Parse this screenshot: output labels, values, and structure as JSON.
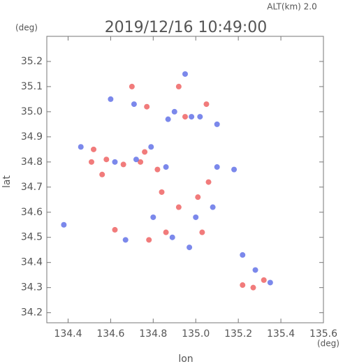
{
  "chart_data": {
    "type": "scatter",
    "title": "2019/12/16 10:49:00",
    "annotation": "ALT(km) 2.0",
    "y_unit": "(deg)",
    "x_unit": "(deg)",
    "xlabel": "lon",
    "ylabel": "lat",
    "xlim": [
      134.3,
      135.6
    ],
    "ylim": [
      34.16,
      35.3
    ],
    "xticks": [
      134.4,
      134.6,
      134.8,
      {
        "value": 135,
        "label": "135.0"
      },
      135.2,
      135.4,
      135.6
    ],
    "yticks": [
      34.2,
      34.3,
      34.4,
      34.5,
      34.6,
      34.7,
      34.8,
      34.9,
      {
        "value": 35,
        "label": "35.0"
      },
      35.1,
      35.2
    ],
    "series": [
      {
        "color": "#ee5a5a",
        "x": [
          134.52,
          134.51,
          134.58,
          134.66,
          134.74,
          134.76,
          134.82,
          134.7,
          134.77,
          134.92,
          135.05,
          134.95,
          134.84,
          134.92,
          134.86,
          134.78,
          135.01,
          135.06,
          135.27,
          135.32,
          135.22,
          134.62,
          135.03,
          134.56
        ],
        "values": [
          34.85,
          34.8,
          34.81,
          34.79,
          34.8,
          34.84,
          34.77,
          35.1,
          35.02,
          35.1,
          35.03,
          34.98,
          34.68,
          34.62,
          34.52,
          34.49,
          34.66,
          34.72,
          34.3,
          34.33,
          34.31,
          34.53,
          34.52,
          34.75
        ]
      },
      {
        "color": "#5a6ae6",
        "x": [
          134.46,
          134.38,
          134.62,
          134.72,
          134.79,
          134.86,
          134.87,
          134.95,
          134.9,
          135.02,
          135.1,
          134.98,
          135.18,
          135.1,
          135.08,
          135.0,
          134.89,
          134.97,
          135.28,
          135.35,
          135.22,
          134.71,
          134.6,
          134.67,
          134.8
        ],
        "values": [
          34.86,
          34.55,
          34.8,
          34.81,
          34.86,
          34.78,
          34.97,
          35.15,
          35.0,
          34.98,
          34.95,
          34.98,
          34.77,
          34.78,
          34.62,
          34.58,
          34.5,
          34.46,
          34.37,
          34.32,
          34.43,
          35.03,
          35.05,
          34.49,
          34.58
        ]
      }
    ]
  }
}
